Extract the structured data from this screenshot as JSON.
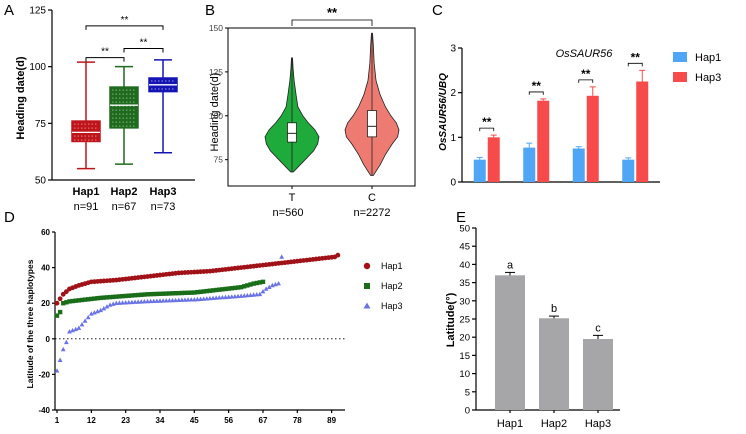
{
  "figure": {
    "panel_letters": [
      "A",
      "B",
      "C",
      "D",
      "E"
    ]
  },
  "chart_data": [
    {
      "panel": "A",
      "type": "box",
      "ylabel": "Heading date(d)",
      "ylim": [
        50,
        125
      ],
      "yticks": [
        50,
        75,
        100,
        125
      ],
      "categories": [
        "Hap1",
        "Hap2",
        "Hap3"
      ],
      "counts": [
        "n=91",
        "n=67",
        "n=73"
      ],
      "colors": [
        "#c0141b",
        "#1e6b1e",
        "#1414b4"
      ],
      "boxes": [
        {
          "min": 55,
          "q1": 67,
          "median": 71,
          "q3": 76,
          "max": 102
        },
        {
          "min": 57,
          "q1": 73,
          "median": 83,
          "q3": 91,
          "max": 100
        },
        {
          "min": 62,
          "q1": 89,
          "median": 92,
          "q3": 95,
          "max": 103
        }
      ],
      "significance": [
        {
          "from": 0,
          "to": 2,
          "label": "**",
          "level": 118
        },
        {
          "from": 0,
          "to": 1,
          "label": "**",
          "level": 104
        },
        {
          "from": 1,
          "to": 2,
          "label": "**",
          "level": 108
        }
      ]
    },
    {
      "panel": "B",
      "type": "violin",
      "ylabel": "Heading date(d)",
      "ylim": [
        60,
        150
      ],
      "yticks": [
        75,
        100,
        125,
        150
      ],
      "categories": [
        "T",
        "C"
      ],
      "counts": [
        "n=560",
        "n=2272"
      ],
      "colors": [
        "#1faa3c",
        "#ee7b72"
      ],
      "violins": [
        {
          "min": 68,
          "q1": 85,
          "median": 90,
          "q3": 96,
          "max": 133,
          "density": [
            [
              68,
              0.05
            ],
            [
              72,
              0.3
            ],
            [
              76,
              0.55
            ],
            [
              80,
              0.8
            ],
            [
              84,
              0.95
            ],
            [
              88,
              1.0
            ],
            [
              92,
              0.85
            ],
            [
              96,
              0.6
            ],
            [
              100,
              0.4
            ],
            [
              105,
              0.22
            ],
            [
              112,
              0.15
            ],
            [
              120,
              0.08
            ],
            [
              127,
              0.04
            ],
            [
              133,
              0.02
            ]
          ]
        },
        {
          "min": 66,
          "q1": 88,
          "median": 94,
          "q3": 103,
          "max": 147,
          "density": [
            [
              66,
              0.05
            ],
            [
              72,
              0.3
            ],
            [
              78,
              0.5
            ],
            [
              84,
              0.75
            ],
            [
              88,
              0.95
            ],
            [
              92,
              1.0
            ],
            [
              96,
              0.9
            ],
            [
              100,
              0.7
            ],
            [
              105,
              0.5
            ],
            [
              112,
              0.3
            ],
            [
              120,
              0.15
            ],
            [
              130,
              0.08
            ],
            [
              140,
              0.05
            ],
            [
              147,
              0.02
            ]
          ]
        }
      ],
      "significance": {
        "label": "**"
      }
    },
    {
      "panel": "C",
      "type": "bar",
      "title": "OsSAUR56",
      "ylabel": "OsSAUR56/UBQ",
      "ylim": [
        0,
        3
      ],
      "yticks": [
        0,
        1,
        2,
        3
      ],
      "groups": 4,
      "series": [
        {
          "name": "Hap1",
          "color": "#4fa6f7",
          "values": [
            0.5,
            0.77,
            0.75,
            0.5
          ],
          "errors": [
            0.05,
            0.1,
            0.04,
            0.04
          ]
        },
        {
          "name": "Hap3",
          "color": "#f74a4a",
          "values": [
            1.0,
            1.82,
            1.93,
            2.25
          ],
          "errors": [
            0.05,
            0.04,
            0.2,
            0.25
          ]
        }
      ],
      "significance": [
        "**",
        "**",
        "**",
        "**"
      ]
    },
    {
      "panel": "D",
      "type": "scatter",
      "ylabel": "Latitude of the three haplotypes",
      "ylim": [
        -40,
        60
      ],
      "yticks": [
        -40,
        -20,
        0,
        20,
        40,
        60
      ],
      "xlim": [
        1,
        92
      ],
      "xticks": [
        1,
        12,
        23,
        34,
        45,
        56,
        67,
        78,
        89
      ],
      "series": [
        {
          "name": "Hap1",
          "color": "#a01218",
          "marker": "circle",
          "n": 91,
          "curve": [
            [
              1,
              20
            ],
            [
              3,
              25
            ],
            [
              5,
              28
            ],
            [
              8,
              30
            ],
            [
              12,
              32
            ],
            [
              20,
              33
            ],
            [
              30,
              35
            ],
            [
              40,
              37
            ],
            [
              50,
              38
            ],
            [
              60,
              40
            ],
            [
              70,
              42
            ],
            [
              80,
              44
            ],
            [
              90,
              46
            ],
            [
              91,
              47
            ]
          ]
        },
        {
          "name": "Hap2",
          "color": "#1a6e1a",
          "marker": "square",
          "n": 67,
          "curve": [
            [
              1,
              13
            ],
            [
              2,
              15
            ],
            [
              3,
              20
            ],
            [
              5,
              21
            ],
            [
              15,
              23
            ],
            [
              30,
              25
            ],
            [
              45,
              26
            ],
            [
              55,
              28
            ],
            [
              60,
              29
            ],
            [
              64,
              31
            ],
            [
              67,
              32
            ]
          ]
        },
        {
          "name": "Hap3",
          "color": "#6a73e6",
          "marker": "triangle",
          "n": 73,
          "curve": [
            [
              1,
              -18
            ],
            [
              2,
              -12
            ],
            [
              3,
              -6
            ],
            [
              4,
              -2
            ],
            [
              5,
              4
            ],
            [
              8,
              6
            ],
            [
              10,
              10
            ],
            [
              12,
              14
            ],
            [
              15,
              16
            ],
            [
              18,
              19
            ],
            [
              20,
              20
            ],
            [
              30,
              21
            ],
            [
              45,
              22
            ],
            [
              60,
              24
            ],
            [
              66,
              25
            ],
            [
              68,
              28
            ],
            [
              70,
              30
            ],
            [
              72,
              31
            ],
            [
              73,
              46
            ]
          ]
        }
      ]
    },
    {
      "panel": "E",
      "type": "bar",
      "ylabel": "Latitude(°)",
      "ylim": [
        0,
        50
      ],
      "yticks": [
        0,
        5,
        10,
        15,
        20,
        25,
        30,
        35,
        40,
        45,
        50
      ],
      "categories": [
        "Hap1",
        "Hap2",
        "Hap3"
      ],
      "values": [
        37,
        25.2,
        19.5
      ],
      "errors": [
        0.8,
        0.6,
        1.0
      ],
      "letters": [
        "a",
        "b",
        "c"
      ],
      "color": "#a6a6a8"
    }
  ]
}
